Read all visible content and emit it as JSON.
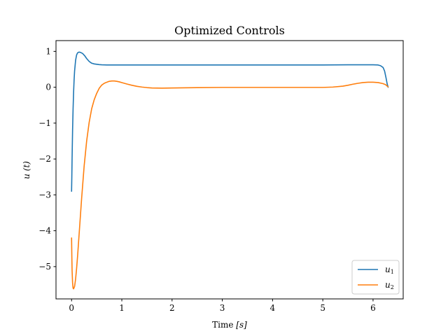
{
  "chart_data": {
    "type": "line",
    "title": "Optimized Controls",
    "xlabel": "Time [s]",
    "xlabel_parts": {
      "text": "Time ",
      "unit": "[s]"
    },
    "ylabel": "u (t)",
    "xlim": [
      -0.31,
      6.6
    ],
    "ylim": [
      -5.9,
      1.3
    ],
    "xticks": [
      0,
      1,
      2,
      3,
      4,
      5,
      6
    ],
    "yticks": [
      1,
      0,
      -1,
      -2,
      -3,
      -4,
      -5
    ],
    "xtick_labels": [
      "0",
      "1",
      "2",
      "3",
      "4",
      "5",
      "6"
    ],
    "ytick_labels": [
      "1",
      "0",
      "−1",
      "−2",
      "−3",
      "−4",
      "−5"
    ],
    "grid": false,
    "legend_position": "bottom-right",
    "series": [
      {
        "name": "u1",
        "label_base": "u",
        "label_sub": "1",
        "color": "#1f77b4",
        "x": [
          0,
          0.005,
          0.01,
          0.02,
          0.03,
          0.04,
          0.05,
          0.06,
          0.08,
          0.1,
          0.12,
          0.15,
          0.18,
          0.22,
          0.26,
          0.3,
          0.35,
          0.4,
          0.45,
          0.5,
          0.55,
          0.6,
          0.7,
          0.8,
          0.9,
          1.0,
          1.5,
          2.0,
          3.0,
          4.0,
          5.0,
          5.5,
          5.8,
          6.0,
          6.1,
          6.15,
          6.2,
          6.23,
          6.26,
          6.28,
          6.3
        ],
        "values": [
          -2.9,
          -2.5,
          -2.0,
          -1.2,
          -0.6,
          -0.15,
          0.2,
          0.45,
          0.75,
          0.9,
          0.96,
          0.98,
          0.97,
          0.94,
          0.88,
          0.8,
          0.72,
          0.67,
          0.65,
          0.64,
          0.63,
          0.625,
          0.62,
          0.62,
          0.62,
          0.62,
          0.62,
          0.62,
          0.62,
          0.62,
          0.62,
          0.625,
          0.625,
          0.625,
          0.62,
          0.6,
          0.55,
          0.45,
          0.25,
          0.1,
          0.0
        ]
      },
      {
        "name": "u2",
        "label_base": "u",
        "label_sub": "2",
        "color": "#ff7f0e",
        "x": [
          0,
          0.005,
          0.01,
          0.02,
          0.03,
          0.04,
          0.06,
          0.08,
          0.1,
          0.12,
          0.15,
          0.2,
          0.25,
          0.3,
          0.35,
          0.4,
          0.45,
          0.5,
          0.55,
          0.6,
          0.65,
          0.7,
          0.75,
          0.8,
          0.85,
          0.9,
          0.95,
          1.0,
          1.1,
          1.2,
          1.3,
          1.4,
          1.5,
          1.6,
          1.8,
          2.0,
          2.5,
          3.0,
          3.5,
          4.0,
          4.5,
          5.0,
          5.2,
          5.4,
          5.5,
          5.6,
          5.7,
          5.8,
          5.9,
          6.0,
          6.1,
          6.2,
          6.25,
          6.3
        ],
        "values": [
          -4.2,
          -4.7,
          -5.1,
          -5.45,
          -5.6,
          -5.62,
          -5.55,
          -5.35,
          -5.05,
          -4.7,
          -4.1,
          -3.1,
          -2.2,
          -1.5,
          -0.98,
          -0.6,
          -0.35,
          -0.17,
          -0.03,
          0.06,
          0.11,
          0.14,
          0.165,
          0.175,
          0.175,
          0.165,
          0.15,
          0.13,
          0.09,
          0.055,
          0.025,
          0.005,
          -0.01,
          -0.02,
          -0.025,
          -0.02,
          -0.01,
          -0.005,
          -0.005,
          -0.005,
          -0.005,
          -0.005,
          0.005,
          0.03,
          0.055,
          0.085,
          0.11,
          0.13,
          0.14,
          0.14,
          0.13,
          0.1,
          0.07,
          0.01
        ]
      }
    ]
  }
}
